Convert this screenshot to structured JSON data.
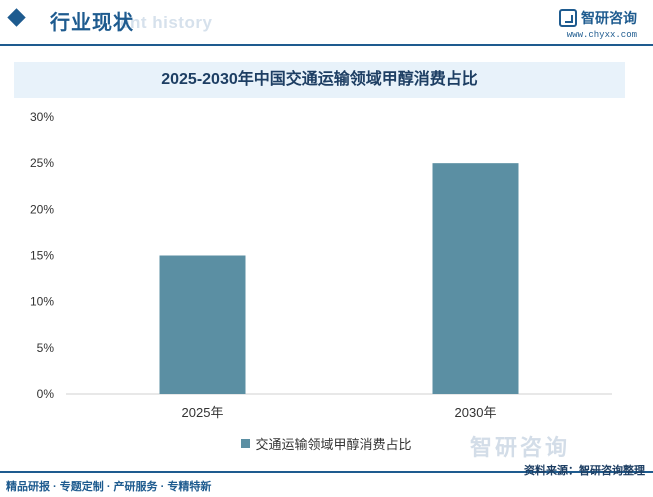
{
  "header": {
    "title": "行业现状",
    "ghost_text": "ent history",
    "brand_name": "智研咨询",
    "brand_url": "www.chyxx.com"
  },
  "watermark": {
    "brand_text": "智研咨询"
  },
  "chart_data": {
    "type": "bar",
    "title": "2025-2030年中国交通运输领域甲醇消费占比",
    "categories": [
      "2025年",
      "2030年"
    ],
    "series": [
      {
        "name": "交通运输领域甲醇消费占比",
        "values": [
          15,
          25
        ],
        "color": "#5b8fa3"
      }
    ],
    "yticks": [
      "0%",
      "5%",
      "10%",
      "15%",
      "20%",
      "25%",
      "30%"
    ],
    "ylim": [
      0,
      30
    ],
    "grid": false,
    "legend_position": "bottom"
  },
  "footer": {
    "left": "精品研报 · 专题定制 · 产研服务 · 专精特新",
    "right": "资料来源：智研咨询整理"
  }
}
